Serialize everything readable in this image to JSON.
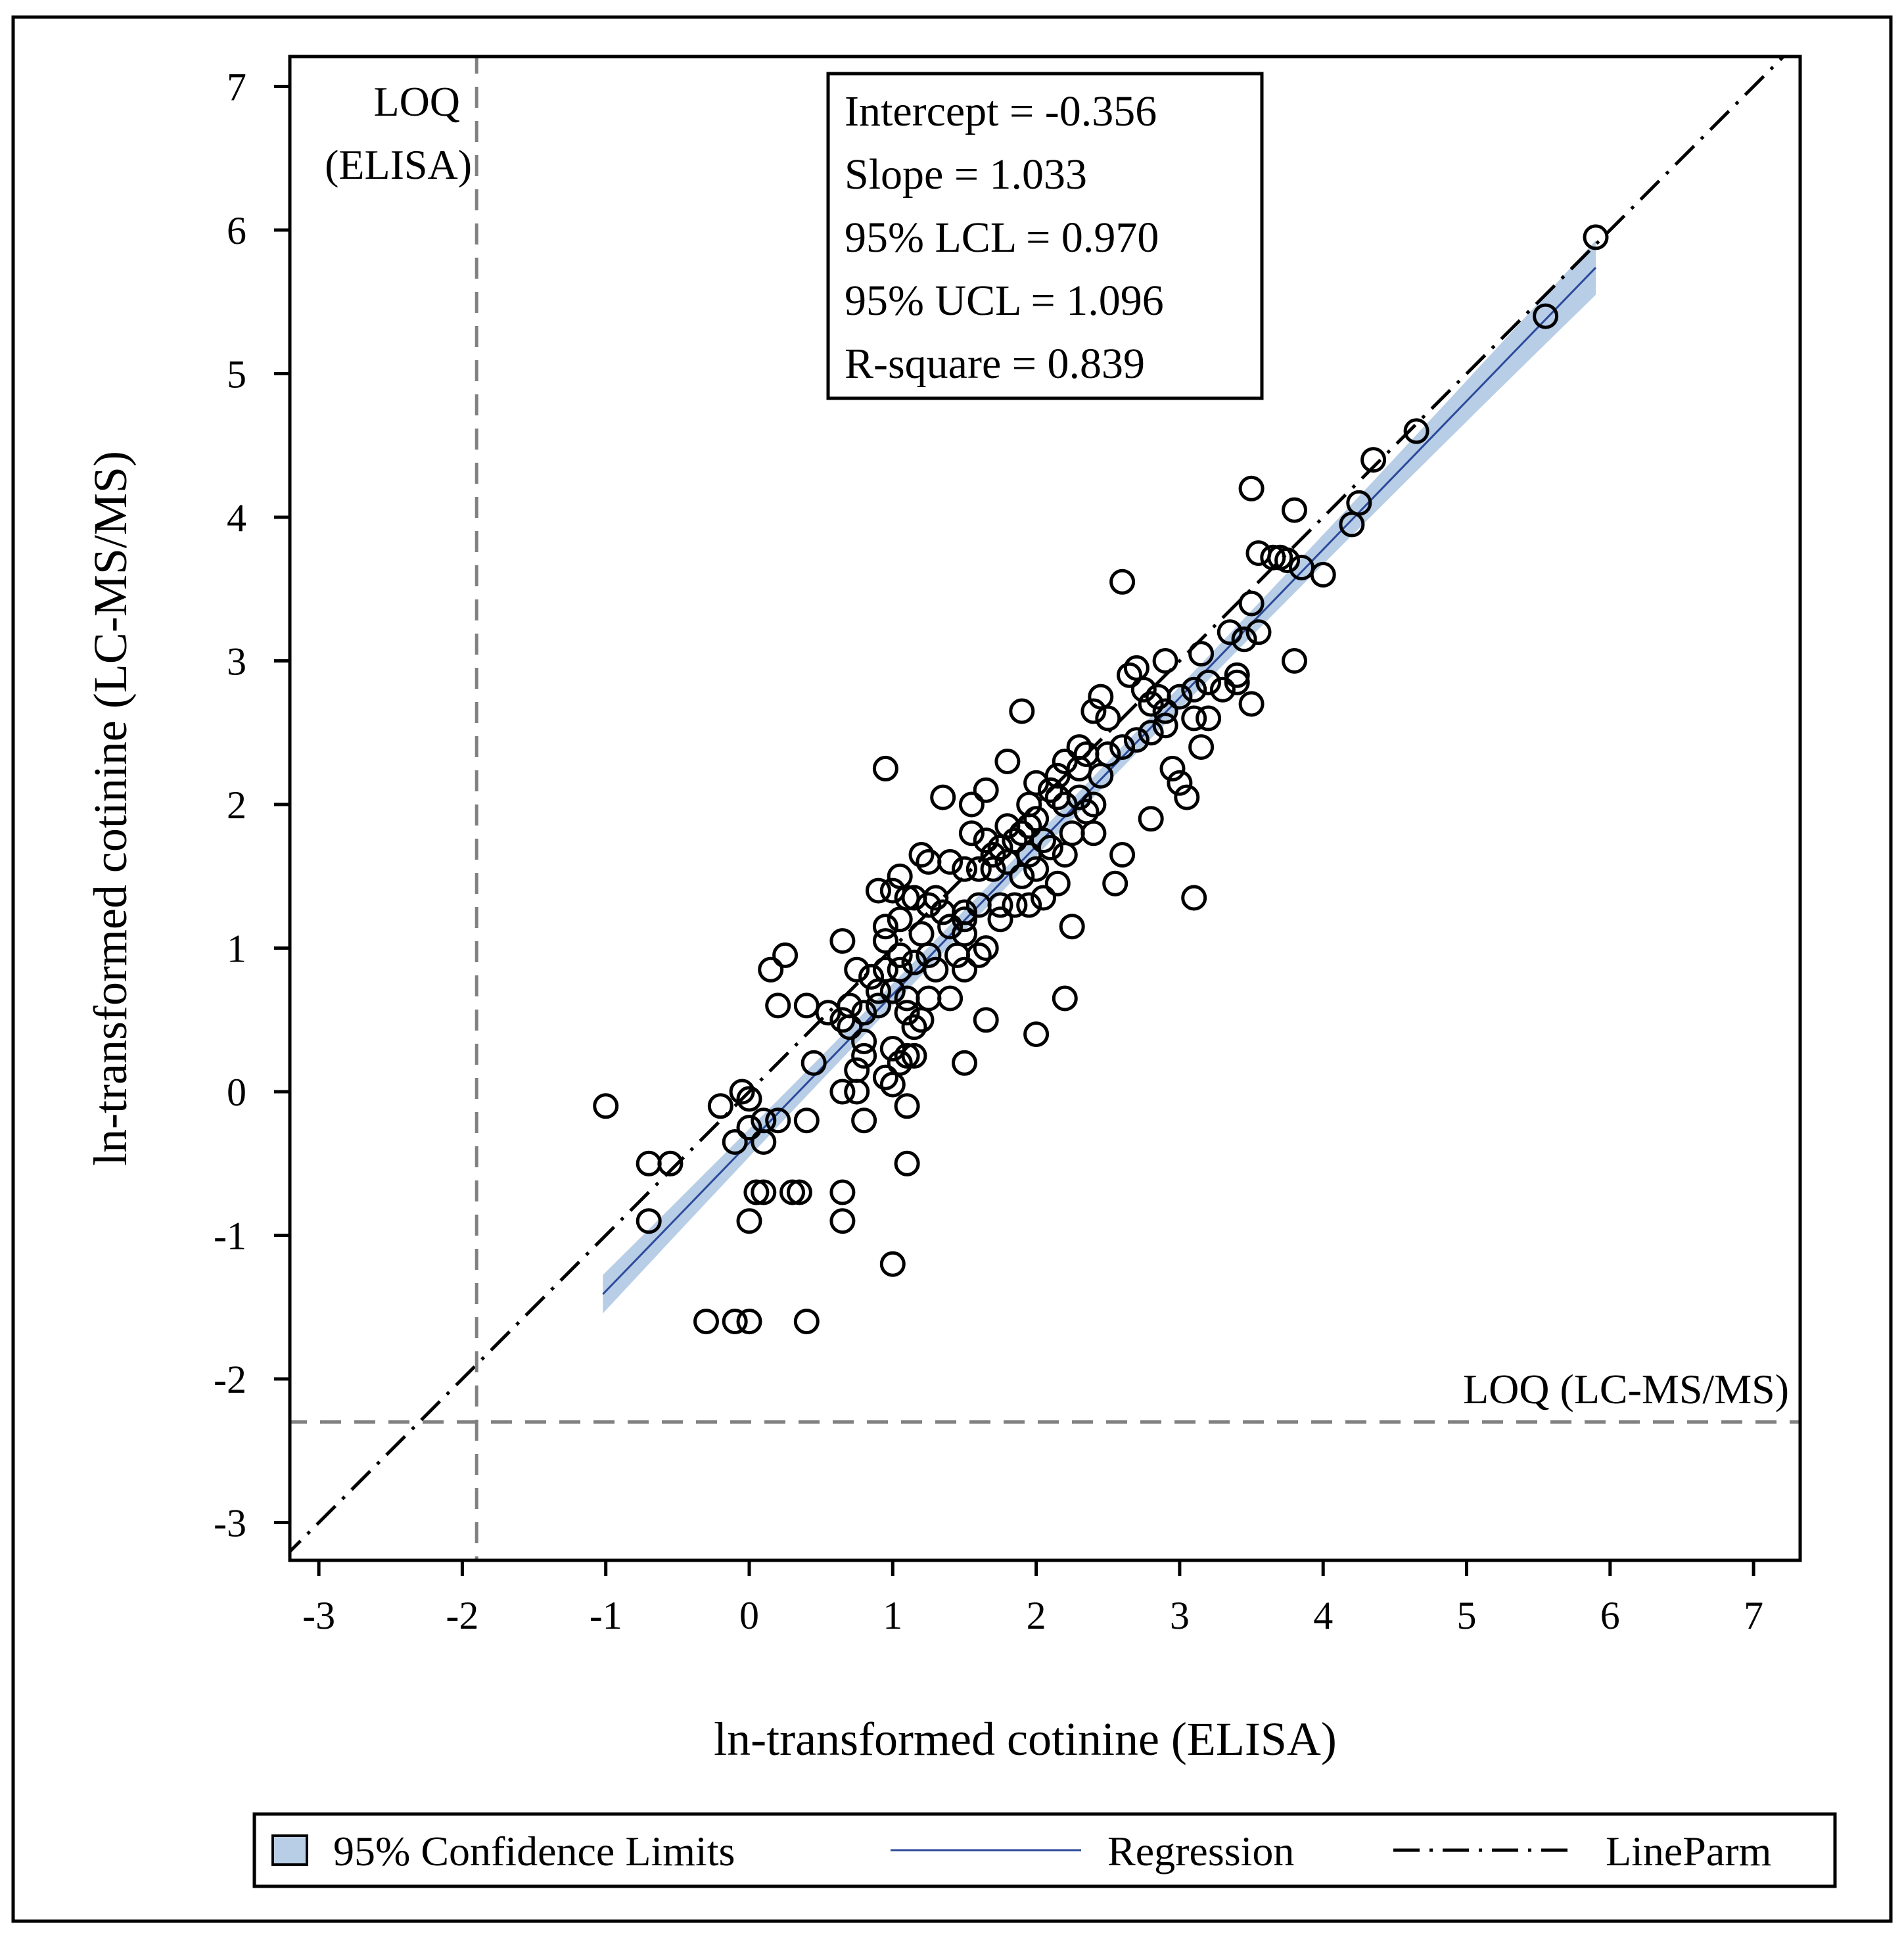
{
  "chart_data": {
    "type": "scatter",
    "xlabel": "ln-transformed cotinine (ELISA)",
    "ylabel": "ln-transformed cotinine (LC-MS/MS)",
    "xlim": [
      -3.2,
      7.25
    ],
    "ylim": [
      -3.2,
      7.25
    ],
    "x_ticks": [
      -3,
      -2,
      -1,
      0,
      1,
      2,
      3,
      4,
      5,
      6,
      7
    ],
    "y_ticks": [
      -3,
      -2,
      -1,
      0,
      1,
      2,
      3,
      4,
      5,
      6,
      7
    ],
    "grid": false,
    "stats": [
      "Intercept = -0.356",
      "Slope =  1.033",
      "95% LCL =  0.970",
      "95% UCL =  1.096",
      "R-square = 0.839"
    ],
    "regression": {
      "intercept": -0.356,
      "slope": 1.033,
      "x_range": [
        -1.02,
        5.9
      ]
    },
    "confidence_band": {
      "halfwidth_at_mean": 0.07,
      "halfwidth_at_ends": 0.19,
      "x_mean": 1.9
    },
    "line_parm": {
      "intercept": 0,
      "slope": 1
    },
    "loq_elisa": {
      "x": -1.9,
      "label_line1": "LOQ",
      "label_line2": "(ELISA)"
    },
    "loq_lcmsms": {
      "y": -2.3,
      "label": "LOQ (LC-MS/MS)"
    },
    "legend": {
      "position": "bottom",
      "items": [
        "95% Confidence Limits",
        "Regression",
        "LineParm"
      ]
    },
    "colors": {
      "band_fill": "#b8cde6",
      "regression_line": "#2b4a9a",
      "reference_line": "#000000",
      "loq_line": "#808080",
      "marker": "#000000"
    },
    "points": [
      [
        5.9,
        5.95
      ],
      [
        5.55,
        5.4
      ],
      [
        4.65,
        4.6
      ],
      [
        4.35,
        4.4
      ],
      [
        4.25,
        4.1
      ],
      [
        4.2,
        3.95
      ],
      [
        3.5,
        4.2
      ],
      [
        3.8,
        4.05
      ],
      [
        3.55,
        3.75
      ],
      [
        3.65,
        3.72
      ],
      [
        3.7,
        3.72
      ],
      [
        3.75,
        3.7
      ],
      [
        3.85,
        3.65
      ],
      [
        4.0,
        3.6
      ],
      [
        2.6,
        3.55
      ],
      [
        3.5,
        3.4
      ],
      [
        3.35,
        3.2
      ],
      [
        3.45,
        3.15
      ],
      [
        3.55,
        3.2
      ],
      [
        3.15,
        3.05
      ],
      [
        3.8,
        3.0
      ],
      [
        2.9,
        3.0
      ],
      [
        2.7,
        2.95
      ],
      [
        2.65,
        2.9
      ],
      [
        2.75,
        2.8
      ],
      [
        3.0,
        2.75
      ],
      [
        3.1,
        2.8
      ],
      [
        3.2,
        2.85
      ],
      [
        3.3,
        2.8
      ],
      [
        3.4,
        2.85
      ],
      [
        3.4,
        2.9
      ],
      [
        3.5,
        2.7
      ],
      [
        3.2,
        2.6
      ],
      [
        2.45,
        2.75
      ],
      [
        2.4,
        2.65
      ],
      [
        2.5,
        2.6
      ],
      [
        2.8,
        2.7
      ],
      [
        2.85,
        2.75
      ],
      [
        2.9,
        2.65
      ],
      [
        1.9,
        2.65
      ],
      [
        2.3,
        2.4
      ],
      [
        2.35,
        2.35
      ],
      [
        2.5,
        2.35
      ],
      [
        2.6,
        2.4
      ],
      [
        2.7,
        2.45
      ],
      [
        2.8,
        2.5
      ],
      [
        2.9,
        2.55
      ],
      [
        3.1,
        2.6
      ],
      [
        3.15,
        2.4
      ],
      [
        1.8,
        2.3
      ],
      [
        2.2,
        2.3
      ],
      [
        2.3,
        2.25
      ],
      [
        2.45,
        2.2
      ],
      [
        2.95,
        2.25
      ],
      [
        3.0,
        2.15
      ],
      [
        3.05,
        2.05
      ],
      [
        0.95,
        2.25
      ],
      [
        1.65,
        2.1
      ],
      [
        2.0,
        2.15
      ],
      [
        2.1,
        2.1
      ],
      [
        2.15,
        2.2
      ],
      [
        2.3,
        2.05
      ],
      [
        2.4,
        2.0
      ],
      [
        1.35,
        2.05
      ],
      [
        1.55,
        2.0
      ],
      [
        1.95,
        2.0
      ],
      [
        2.0,
        1.9
      ],
      [
        2.1,
        2.1
      ],
      [
        2.15,
        2.05
      ],
      [
        2.2,
        2.0
      ],
      [
        2.35,
        1.95
      ],
      [
        1.8,
        1.85
      ],
      [
        1.85,
        1.75
      ],
      [
        1.9,
        1.8
      ],
      [
        1.95,
        1.85
      ],
      [
        2.05,
        1.75
      ],
      [
        2.1,
        1.7
      ],
      [
        2.25,
        1.8
      ],
      [
        2.4,
        1.8
      ],
      [
        1.55,
        1.8
      ],
      [
        1.65,
        1.75
      ],
      [
        1.7,
        1.65
      ],
      [
        1.75,
        1.7
      ],
      [
        1.8,
        1.6
      ],
      [
        1.95,
        1.65
      ],
      [
        2.2,
        1.65
      ],
      [
        2.6,
        1.65
      ],
      [
        2.8,
        1.9
      ],
      [
        1.2,
        1.65
      ],
      [
        1.25,
        1.6
      ],
      [
        1.4,
        1.6
      ],
      [
        1.5,
        1.55
      ],
      [
        1.6,
        1.55
      ],
      [
        1.7,
        1.55
      ],
      [
        1.9,
        1.5
      ],
      [
        2.0,
        1.55
      ],
      [
        2.15,
        1.45
      ],
      [
        2.55,
        1.45
      ],
      [
        1.05,
        1.5
      ],
      [
        1.15,
        1.35
      ],
      [
        1.25,
        1.3
      ],
      [
        1.35,
        1.25
      ],
      [
        1.5,
        1.25
      ],
      [
        1.6,
        1.3
      ],
      [
        1.75,
        1.3
      ],
      [
        1.85,
        1.3
      ],
      [
        1.95,
        1.3
      ],
      [
        2.05,
        1.35
      ],
      [
        0.9,
        1.4
      ],
      [
        1.0,
        1.4
      ],
      [
        1.1,
        1.35
      ],
      [
        1.3,
        1.35
      ],
      [
        1.5,
        1.2
      ],
      [
        1.75,
        1.2
      ],
      [
        3.1,
        1.35
      ],
      [
        0.95,
        1.15
      ],
      [
        1.05,
        1.2
      ],
      [
        1.2,
        1.1
      ],
      [
        1.4,
        1.15
      ],
      [
        1.5,
        1.1
      ],
      [
        2.25,
        1.15
      ],
      [
        0.65,
        1.05
      ],
      [
        0.95,
        1.05
      ],
      [
        1.05,
        0.95
      ],
      [
        1.15,
        0.9
      ],
      [
        1.25,
        0.95
      ],
      [
        1.45,
        0.95
      ],
      [
        1.6,
        0.95
      ],
      [
        1.65,
        1.0
      ],
      [
        0.25,
        0.95
      ],
      [
        0.15,
        0.85
      ],
      [
        0.75,
        0.85
      ],
      [
        0.85,
        0.8
      ],
      [
        0.95,
        0.85
      ],
      [
        1.05,
        0.85
      ],
      [
        1.3,
        0.85
      ],
      [
        1.5,
        0.85
      ],
      [
        0.9,
        0.7
      ],
      [
        1.0,
        0.7
      ],
      [
        1.1,
        0.65
      ],
      [
        1.25,
        0.65
      ],
      [
        1.4,
        0.65
      ],
      [
        0.7,
        0.6
      ],
      [
        0.8,
        0.55
      ],
      [
        0.9,
        0.6
      ],
      [
        1.1,
        0.55
      ],
      [
        1.2,
        0.5
      ],
      [
        0.2,
        0.6
      ],
      [
        0.4,
        0.6
      ],
      [
        0.55,
        0.55
      ],
      [
        0.65,
        0.5
      ],
      [
        0.7,
        0.45
      ],
      [
        1.65,
        0.5
      ],
      [
        1.15,
        0.45
      ],
      [
        2.2,
        0.65
      ],
      [
        2.0,
        0.4
      ],
      [
        0.8,
        0.35
      ],
      [
        0.8,
        0.25
      ],
      [
        1.0,
        0.3
      ],
      [
        1.1,
        0.25
      ],
      [
        1.15,
        0.25
      ],
      [
        1.5,
        0.2
      ],
      [
        0.45,
        0.2
      ],
      [
        0.75,
        0.15
      ],
      [
        0.95,
        0.1
      ],
      [
        1.0,
        0.05
      ],
      [
        1.05,
        0.2
      ],
      [
        0.65,
        0.0
      ],
      [
        0.75,
        0.0
      ],
      [
        -0.05,
        0.0
      ],
      [
        0.0,
        -0.05
      ],
      [
        -0.2,
        -0.1
      ],
      [
        1.1,
        -0.1
      ],
      [
        -1.0,
        -0.1
      ],
      [
        0.1,
        -0.2
      ],
      [
        0.2,
        -0.2
      ],
      [
        0.4,
        -0.2
      ],
      [
        0.8,
        -0.2
      ],
      [
        0.0,
        -0.25
      ],
      [
        -0.1,
        -0.35
      ],
      [
        0.1,
        -0.35
      ],
      [
        -0.7,
        -0.5
      ],
      [
        -0.55,
        -0.5
      ],
      [
        1.1,
        -0.5
      ],
      [
        0.05,
        -0.7
      ],
      [
        0.1,
        -0.7
      ],
      [
        0.3,
        -0.7
      ],
      [
        0.35,
        -0.7
      ],
      [
        0.65,
        -0.7
      ],
      [
        -0.7,
        -0.9
      ],
      [
        0.0,
        -0.9
      ],
      [
        0.65,
        -0.9
      ],
      [
        1.0,
        -1.2
      ],
      [
        -0.3,
        -1.6
      ],
      [
        -0.1,
        -1.6
      ],
      [
        0.0,
        -1.6
      ],
      [
        0.4,
        -1.6
      ]
    ]
  }
}
